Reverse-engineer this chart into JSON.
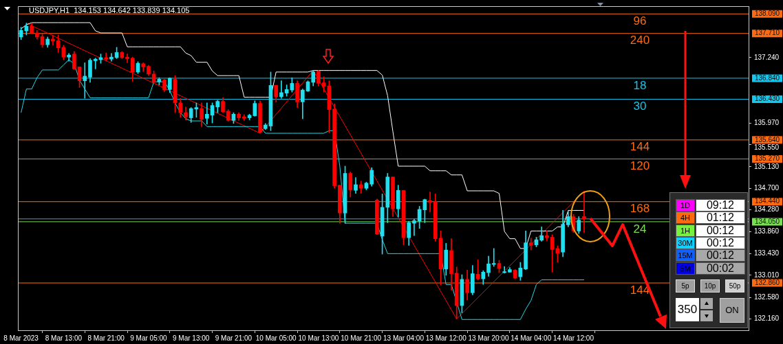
{
  "chart_data": [
    {
      "type": "candlestick",
      "title": "USDJPY,H1  134.153 134.642 133.839 134.105",
      "categories": [
        "8 Mar 2023",
        null,
        null,
        null,
        null,
        null,
        null,
        null,
        "8 Mar 13:00",
        null,
        null,
        null,
        null,
        null,
        null,
        null,
        "8 Mar 21:00",
        null,
        null,
        null,
        null,
        null,
        null,
        null,
        "9 Mar 05:00",
        null,
        null,
        null,
        null,
        null,
        null,
        null,
        "9 Mar 13:00",
        null,
        null,
        null,
        null,
        null,
        null,
        null,
        "9 Mar 21:00",
        null,
        null,
        null,
        null,
        null,
        null,
        null,
        "10 Mar 05:00",
        null,
        null,
        null,
        null,
        null,
        null,
        null,
        "10 Mar 13:00",
        null,
        null,
        null,
        null,
        null,
        null,
        null,
        "10 Mar 21:00",
        null,
        null,
        null,
        null,
        null,
        null,
        null,
        "13 Mar 04:00",
        null,
        null,
        null,
        null,
        null,
        null,
        null,
        "13 Mar 12:00",
        null,
        null,
        null,
        null,
        null,
        null,
        null,
        "13 Mar 20:00",
        null,
        null,
        null,
        null,
        null,
        null,
        null,
        "14 Mar 04:00",
        null,
        null,
        null,
        null,
        null,
        null,
        null,
        "14 Mar 12:00",
        null,
        null
      ],
      "ohlc": [
        [
          137.64,
          137.83,
          137.59,
          137.77
        ],
        [
          137.76,
          137.91,
          137.68,
          137.85
        ],
        [
          137.85,
          137.91,
          137.7,
          137.72
        ],
        [
          137.72,
          137.77,
          137.6,
          137.64
        ],
        [
          137.65,
          137.7,
          137.44,
          137.49
        ],
        [
          137.49,
          137.64,
          137.44,
          137.6
        ],
        [
          137.6,
          137.68,
          137.48,
          137.56
        ],
        [
          137.57,
          137.68,
          137.34,
          137.43
        ],
        [
          137.44,
          137.48,
          137.2,
          137.25
        ],
        [
          137.25,
          137.32,
          137.17,
          137.29
        ],
        [
          137.31,
          137.36,
          137.01,
          137.02
        ],
        [
          137.06,
          137.06,
          136.66,
          136.79
        ],
        [
          136.79,
          137.14,
          136.45,
          136.88
        ],
        [
          136.86,
          137.22,
          136.76,
          137.19
        ],
        [
          137.18,
          137.23,
          137.02,
          137.21
        ],
        [
          137.2,
          137.31,
          137.13,
          137.24
        ],
        [
          137.24,
          137.33,
          137.17,
          137.21
        ],
        [
          137.21,
          137.32,
          137.17,
          137.25
        ],
        [
          137.24,
          137.44,
          137.22,
          137.34
        ],
        [
          137.34,
          137.36,
          137.22,
          137.24
        ],
        [
          137.25,
          137.31,
          137.14,
          137.22
        ],
        [
          137.23,
          137.25,
          136.78,
          136.96
        ],
        [
          136.96,
          137.16,
          136.93,
          137.13
        ],
        [
          137.12,
          137.14,
          136.97,
          137.06
        ],
        [
          137.07,
          137.09,
          136.89,
          136.92
        ],
        [
          136.92,
          136.98,
          136.74,
          136.76
        ],
        [
          136.77,
          136.85,
          136.71,
          136.82
        ],
        [
          136.81,
          136.82,
          136.58,
          136.61
        ],
        [
          136.62,
          136.85,
          136.56,
          136.84
        ],
        [
          136.82,
          136.89,
          136.17,
          136.36
        ],
        [
          136.36,
          136.45,
          136.08,
          136.17
        ],
        [
          136.17,
          136.28,
          136.03,
          136.09
        ],
        [
          136.07,
          136.27,
          135.98,
          136.25
        ],
        [
          136.24,
          136.36,
          136.08,
          136.27
        ],
        [
          136.25,
          136.36,
          135.9,
          136.04
        ],
        [
          136.06,
          136.36,
          135.95,
          136.14
        ],
        [
          136.12,
          136.36,
          135.97,
          136.31
        ],
        [
          136.28,
          136.41,
          136.17,
          136.39
        ],
        [
          136.39,
          136.46,
          136.17,
          136.19
        ],
        [
          136.2,
          136.23,
          136.0,
          136.02
        ],
        [
          136.02,
          136.17,
          135.96,
          136.14
        ],
        [
          136.14,
          136.17,
          136.02,
          136.07
        ],
        [
          136.09,
          136.13,
          136.02,
          136.06
        ],
        [
          136.07,
          136.14,
          136.03,
          136.12
        ],
        [
          136.11,
          136.4,
          136.1,
          136.35
        ],
        [
          136.35,
          136.4,
          135.77,
          135.79
        ],
        [
          135.86,
          135.96,
          135.84,
          135.93
        ],
        [
          135.91,
          136.96,
          135.82,
          136.7
        ],
        [
          136.7,
          136.7,
          136.38,
          136.48
        ],
        [
          136.48,
          136.79,
          136.45,
          136.56
        ],
        [
          136.55,
          136.71,
          136.49,
          136.62
        ],
        [
          136.61,
          136.85,
          136.57,
          136.74
        ],
        [
          136.74,
          136.79,
          136.27,
          136.38
        ],
        [
          136.38,
          136.63,
          136.05,
          136.61
        ],
        [
          136.59,
          136.79,
          136.58,
          136.77
        ],
        [
          136.76,
          136.99,
          136.69,
          136.96
        ],
        [
          136.98,
          136.99,
          136.69,
          136.74
        ],
        [
          136.75,
          136.87,
          136.57,
          136.68
        ],
        [
          136.69,
          136.79,
          135.78,
          136.23
        ],
        [
          136.24,
          136.34,
          134.7,
          134.75
        ],
        [
          134.76,
          134.76,
          134.02,
          134.22
        ],
        [
          134.22,
          135.13,
          134.02,
          134.99
        ],
        [
          134.99,
          135.02,
          134.53,
          134.67
        ],
        [
          134.66,
          134.91,
          134.6,
          134.77
        ],
        [
          134.77,
          134.84,
          134.6,
          134.7
        ],
        [
          134.7,
          134.82,
          134.67,
          134.8
        ],
        [
          134.78,
          135.1,
          134.74,
          135.05
        ],
        [
          134.47,
          134.49,
          133.8,
          133.81
        ],
        [
          133.77,
          134.59,
          133.42,
          134.33
        ],
        [
          134.33,
          134.99,
          134.03,
          134.92
        ],
        [
          134.92,
          134.92,
          134.15,
          134.3
        ],
        [
          134.3,
          134.76,
          134.14,
          134.66
        ],
        [
          134.66,
          134.66,
          133.6,
          133.74
        ],
        [
          133.74,
          134.06,
          133.59,
          134.03
        ],
        [
          134.02,
          134.1,
          133.78,
          134.07
        ],
        [
          134.06,
          134.35,
          133.92,
          134.29
        ],
        [
          134.28,
          134.49,
          134.03,
          134.48
        ],
        [
          134.46,
          134.63,
          134.24,
          134.43
        ],
        [
          134.44,
          134.59,
          133.67,
          133.72
        ],
        [
          133.73,
          133.87,
          132.82,
          133.13
        ],
        [
          133.13,
          133.63,
          133.01,
          133.5
        ],
        [
          133.49,
          133.72,
          132.72,
          133.04
        ],
        [
          133.05,
          133.17,
          132.16,
          132.42
        ],
        [
          132.42,
          133.02,
          132.28,
          132.93
        ],
        [
          132.93,
          133.11,
          132.53,
          132.67
        ],
        [
          132.67,
          133.2,
          132.63,
          133.04
        ],
        [
          133.03,
          133.31,
          132.92,
          132.94
        ],
        [
          132.94,
          133.1,
          132.83,
          133.07
        ],
        [
          133.06,
          133.38,
          132.99,
          133.23
        ],
        [
          133.22,
          133.53,
          133.18,
          133.24
        ],
        [
          133.24,
          133.3,
          133.06,
          133.14
        ],
        [
          133.06,
          133.18,
          133.05,
          133.08
        ],
        [
          133.07,
          133.16,
          133.07,
          133.12
        ],
        [
          133.11,
          133.12,
          132.94,
          132.96
        ],
        [
          132.98,
          133.26,
          132.91,
          133.15
        ],
        [
          133.13,
          133.87,
          133.12,
          133.64
        ],
        [
          133.64,
          133.73,
          133.5,
          133.59
        ],
        [
          133.6,
          133.75,
          133.56,
          133.7
        ],
        [
          133.69,
          133.95,
          133.67,
          133.78
        ],
        [
          133.78,
          133.87,
          133.68,
          133.74
        ],
        [
          133.75,
          133.8,
          133.07,
          133.51
        ],
        [
          133.53,
          133.58,
          133.26,
          133.44
        ],
        [
          133.46,
          134.27,
          133.37,
          134.0
        ],
        [
          133.99,
          134.26,
          133.95,
          134.15
        ],
        [
          134.15,
          134.19,
          133.84,
          133.87
        ],
        [
          133.87,
          134.15,
          133.82,
          134.08
        ],
        [
          134.153,
          134.642,
          133.839,
          134.105
        ]
      ],
      "colors": [
        "#20e0f0",
        "#20e0f0",
        "#ff0000",
        "#ff0000",
        "#ff0000",
        "#20e0f0",
        "#ff0000",
        "#ff0000",
        "#ff0000",
        "#20e0f0",
        "#ff0000",
        "#ff0000",
        "#20e0f0",
        "#20e0f0",
        "#20e0f0",
        "#20e0f0",
        "#ff0000",
        "#20e0f0",
        "#20e0f0",
        "#ff0000",
        "#ff0000",
        "#ff0000",
        "#20e0f0",
        "#ff0000",
        "#ff0000",
        "#ff0000",
        "#20e0f0",
        "#ff0000",
        "#20e0f0",
        "#ff0000",
        "#ff0000",
        "#ff0000",
        "#20e0f0",
        "#20e0f0",
        "#ff0000",
        "#20e0f0",
        "#20e0f0",
        "#20e0f0",
        "#ff0000",
        "#ff0000",
        "#20e0f0",
        "#ff0000",
        "#ff0000",
        "#20e0f0",
        "#20e0f0",
        "#ff0000",
        "#20e0f0",
        "#20e0f0",
        "#ff0000",
        "#20e0f0",
        "#20e0f0",
        "#20e0f0",
        "#ff0000",
        "#20e0f0",
        "#20e0f0",
        "#20e0f0",
        "#ff0000",
        "#ff0000",
        "#ff0000",
        "#ff0000",
        "#ff0000",
        "#20e0f0",
        "#ff0000",
        "#20e0f0",
        "#ff0000",
        "#20e0f0",
        "#20e0f0",
        "#ff0000",
        "#20e0f0",
        "#20e0f0",
        "#ff0000",
        "#20e0f0",
        "#ff0000",
        "#20e0f0",
        "#20e0f0",
        "#20e0f0",
        "#20e0f0",
        "#ff0000",
        "#ff0000",
        "#ff0000",
        "#20e0f0",
        "#ff0000",
        "#ff0000",
        "#20e0f0",
        "#ff0000",
        "#20e0f0",
        "#ff0000",
        "#20e0f0",
        "#20e0f0",
        "#20e0f0",
        "#ff0000",
        "#20e0f0",
        "#20e0f0",
        "#ff0000",
        "#20e0f0",
        "#20e0f0",
        "#ff0000",
        "#20e0f0",
        "#20e0f0",
        "#ff0000",
        "#ff0000",
        "#ff0000",
        "#20e0f0",
        "#20e0f0",
        "#ff0000",
        "#20e0f0",
        "#ff0000"
      ],
      "series": [
        {
          "type": "line",
          "color": "#ffffff",
          "values": [
            137.8,
            137.88,
            137.92,
            137.92,
            137.92,
            137.92,
            137.92,
            137.92,
            137.92,
            137.92,
            137.92,
            137.92,
            137.92,
            137.92,
            137.76,
            137.72,
            137.72,
            137.72,
            137.72,
            137.72,
            137.45,
            137.45,
            137.45,
            137.45,
            137.45,
            137.45,
            137.45,
            137.45,
            137.45,
            137.45,
            137.45,
            137.33,
            137.28,
            137.15,
            137.15,
            137.15,
            136.98,
            136.89,
            136.89,
            136.89,
            136.89,
            136.89,
            136.47,
            136.47,
            136.47,
            136.47,
            136.47,
            136.47,
            136.96,
            136.96,
            136.96,
            136.96,
            136.96,
            136.96,
            136.96,
            136.99,
            136.99,
            136.99,
            136.99,
            136.99,
            136.99,
            136.99,
            136.99,
            136.99,
            136.99,
            136.99,
            136.99,
            136.99,
            136.9,
            136.5,
            135.8,
            135.13,
            135.13,
            135.13,
            135.13,
            135.13,
            135.13,
            135.04,
            135.04,
            135.04,
            135.04,
            134.96,
            134.96,
            134.96,
            134.65,
            134.65,
            134.65,
            134.65,
            134.65,
            134.65,
            134.6,
            133.86,
            133.72,
            133.72,
            133.53,
            133.53,
            133.87,
            133.87,
            133.87,
            133.87,
            133.87,
            133.95,
            133.95,
            134.27,
            134.27,
            134.27,
            134.27
          ]
        },
        {
          "type": "line",
          "color": "#20d8e8",
          "values": [
            136.17,
            136.63,
            136.63,
            136.85,
            137.0,
            137.0,
            137.0,
            137.0,
            137.1,
            137.2,
            137.12,
            136.8,
            136.63,
            136.46,
            136.46,
            136.46,
            136.46,
            136.46,
            136.46,
            136.46,
            136.46,
            136.46,
            136.46,
            136.46,
            136.46,
            136.77,
            136.77,
            136.77,
            136.6,
            136.36,
            136.17,
            136.05,
            136.01,
            136.01,
            136.01,
            135.9,
            135.9,
            135.9,
            135.9,
            135.9,
            135.9,
            135.9,
            135.9,
            135.9,
            135.9,
            135.9,
            135.77,
            135.77,
            135.77,
            135.77,
            135.77,
            135.77,
            135.77,
            135.77,
            135.77,
            135.77,
            135.77,
            135.77,
            135.82,
            135.82,
            135.13,
            134.02,
            134.02,
            134.02,
            134.02,
            134.02,
            134.02,
            134.02,
            133.7,
            133.43,
            133.43,
            133.43,
            133.43,
            133.43,
            133.43,
            133.43,
            133.43,
            133.43,
            133.43,
            133.43,
            132.83,
            132.83,
            null,
            132.15,
            132.15,
            132.15,
            132.15,
            132.15,
            132.15,
            132.15,
            132.15,
            132.15,
            132.15,
            132.15,
            132.15,
            132.35,
            132.52,
            132.83,
            132.92,
            132.92,
            132.92,
            132.92,
            132.92,
            132.92,
            132.92,
            132.92,
            132.92
          ]
        },
        {
          "type": "line",
          "color": "#ff0000",
          "values": [
            null,
            137.91,
            null,
            null,
            null,
            null,
            null,
            null,
            null,
            null,
            null,
            null,
            null,
            null,
            null,
            null,
            null,
            null,
            null,
            null,
            null,
            null,
            null,
            null,
            null,
            null,
            null,
            null,
            null,
            null,
            null,
            null,
            null,
            null,
            null,
            null,
            null,
            null,
            null,
            null,
            null,
            null,
            null,
            null,
            null,
            135.77,
            null,
            null,
            null,
            null,
            null,
            null,
            null,
            null,
            null,
            136.99,
            null,
            null,
            null,
            null,
            null,
            null,
            null,
            null,
            null,
            null,
            null,
            null,
            null,
            null,
            null,
            null,
            null,
            null,
            null,
            null,
            null,
            null,
            null,
            null,
            null,
            null,
            132.16,
            null,
            null,
            null,
            null,
            null,
            null,
            null,
            null,
            null,
            null,
            null,
            null,
            null,
            null,
            null,
            null,
            null,
            null,
            null,
            null,
            null,
            null,
            null,
            134.642
          ]
        }
      ],
      "ylim": [
        131.94,
        138.24
      ],
      "yticks": [
        {
          "value": 132.16,
          "label": "132.160"
        },
        {
          "value": 132.58,
          "label": "132.580"
        },
        {
          "value": 133.01,
          "label": "133.010"
        },
        {
          "value": 133.43,
          "label": "133.430"
        },
        {
          "value": 133.86,
          "label": "133.860"
        },
        {
          "value": 134.28,
          "label": "134.280"
        },
        {
          "value": 134.7,
          "label": "134.700"
        },
        {
          "value": 135.13,
          "label": "135.130"
        },
        {
          "value": 135.55,
          "label": "135.550"
        },
        {
          "value": 135.97,
          "label": "135.970"
        },
        {
          "value": 137.24,
          "label": "137.240"
        }
      ],
      "ref_lines": [
        {
          "axis": "y",
          "value": 138.09,
          "label": "138.090",
          "color": "#ff6a10"
        },
        {
          "axis": "y",
          "value": 137.71,
          "label": "137.710",
          "color": "#ff6a10"
        },
        {
          "axis": "y",
          "value": 136.84,
          "label": "136.840",
          "color": "#10c8f0"
        },
        {
          "axis": "y",
          "value": 136.43,
          "label": "136.430",
          "color": "#10c8f0"
        },
        {
          "axis": "y",
          "value": 135.64,
          "label": "135.640",
          "color": "#ff6a10"
        },
        {
          "axis": "y",
          "value": 135.27,
          "label": "135.270",
          "color": "#ff6a10"
        },
        {
          "axis": "y",
          "value": 134.44,
          "label": "134.440",
          "color": "#ff6a10"
        },
        {
          "axis": "y",
          "value": 134.105,
          "color": "#7a8a9a"
        },
        {
          "axis": "y",
          "value": 134.05,
          "label": "134.050",
          "color": "#78e050"
        },
        {
          "axis": "y",
          "value": 132.86,
          "label": "132.860",
          "color": "#ff6a10"
        }
      ],
      "annotations": [
        {
          "text": "96",
          "y": 138.09
        },
        {
          "text": "240",
          "y": 137.71
        },
        {
          "text": "18",
          "y": 136.84
        },
        {
          "text": "30",
          "y": 136.43
        },
        {
          "text": "144",
          "y": 135.64
        },
        {
          "text": "120",
          "y": 135.27
        },
        {
          "text": "168",
          "y": 134.44
        },
        {
          "text": "24",
          "y": 134.05
        },
        {
          "text": "144",
          "y": 132.86
        }
      ]
    },
    {
      "type": "other",
      "annotations": [
        "1D",
        "09:12",
        "4H",
        "01:12",
        "1H",
        "00:12",
        "30M",
        "00:12",
        "15M",
        "00:12",
        "5M",
        "00:02",
        "5p",
        "10p",
        "50p",
        "350",
        "ON"
      ],
      "colors": [
        "#ff00ff",
        "#ff6a10",
        "#78f040",
        "#10d0ff",
        "#1060ff",
        "#0000e0"
      ]
    }
  ]
}
